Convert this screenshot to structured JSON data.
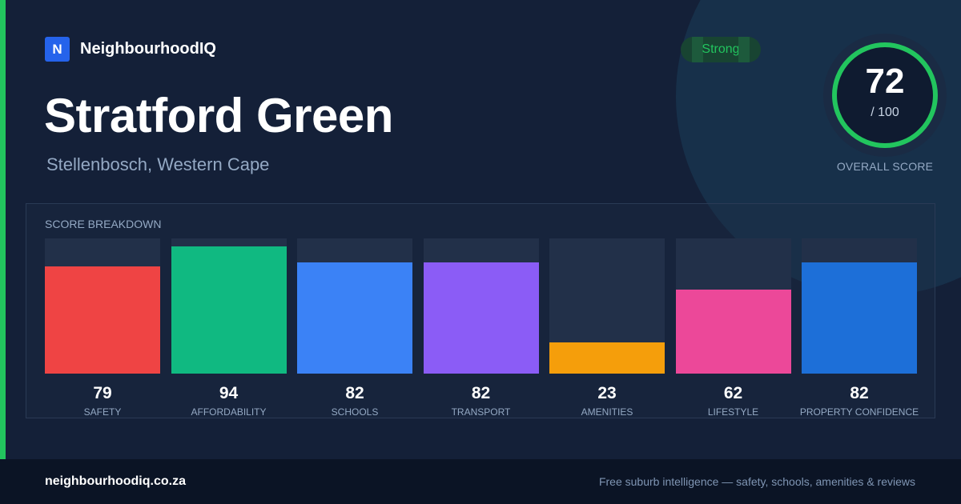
{
  "brand": {
    "logo_letter": "N",
    "name": "NeighbourhoodIQ"
  },
  "suburb": {
    "name": "Stratford Green",
    "location": "Stellenbosch, Western Cape"
  },
  "badge": {
    "label": "Strong"
  },
  "score": {
    "value": "72",
    "max_label": "/ 100",
    "label": "OVERALL SCORE",
    "fraction": 0.72
  },
  "breakdown": {
    "title": "SCORE BREAKDOWN"
  },
  "colors": {
    "accent": "#22c55e",
    "safety": "#ef4444",
    "affordability": "#10b981",
    "schools": "#3b82f6",
    "transport": "#8b5cf6",
    "amenities": "#f59e0b",
    "lifestyle": "#ec4899",
    "property_confidence": "#1d6fd8"
  },
  "chart_data": {
    "type": "bar",
    "categories": [
      "SAFETY",
      "AFFORDABILITY",
      "SCHOOLS",
      "TRANSPORT",
      "AMENITIES",
      "LIFESTYLE",
      "PROPERTY CONFIDENCE"
    ],
    "values": [
      79,
      94,
      82,
      82,
      23,
      62,
      82
    ],
    "value_labels": [
      "79",
      "94",
      "82",
      "82",
      "23",
      "62",
      "82"
    ],
    "ylim": [
      0,
      100
    ],
    "colors": [
      "#ef4444",
      "#10b981",
      "#3b82f6",
      "#8b5cf6",
      "#f59e0b",
      "#ec4899",
      "#1d6fd8"
    ],
    "grid": false
  },
  "footer": {
    "url": "neighbourhoodiq.co.za",
    "tagline": "Free suburb intelligence — safety, schools, amenities & reviews"
  }
}
